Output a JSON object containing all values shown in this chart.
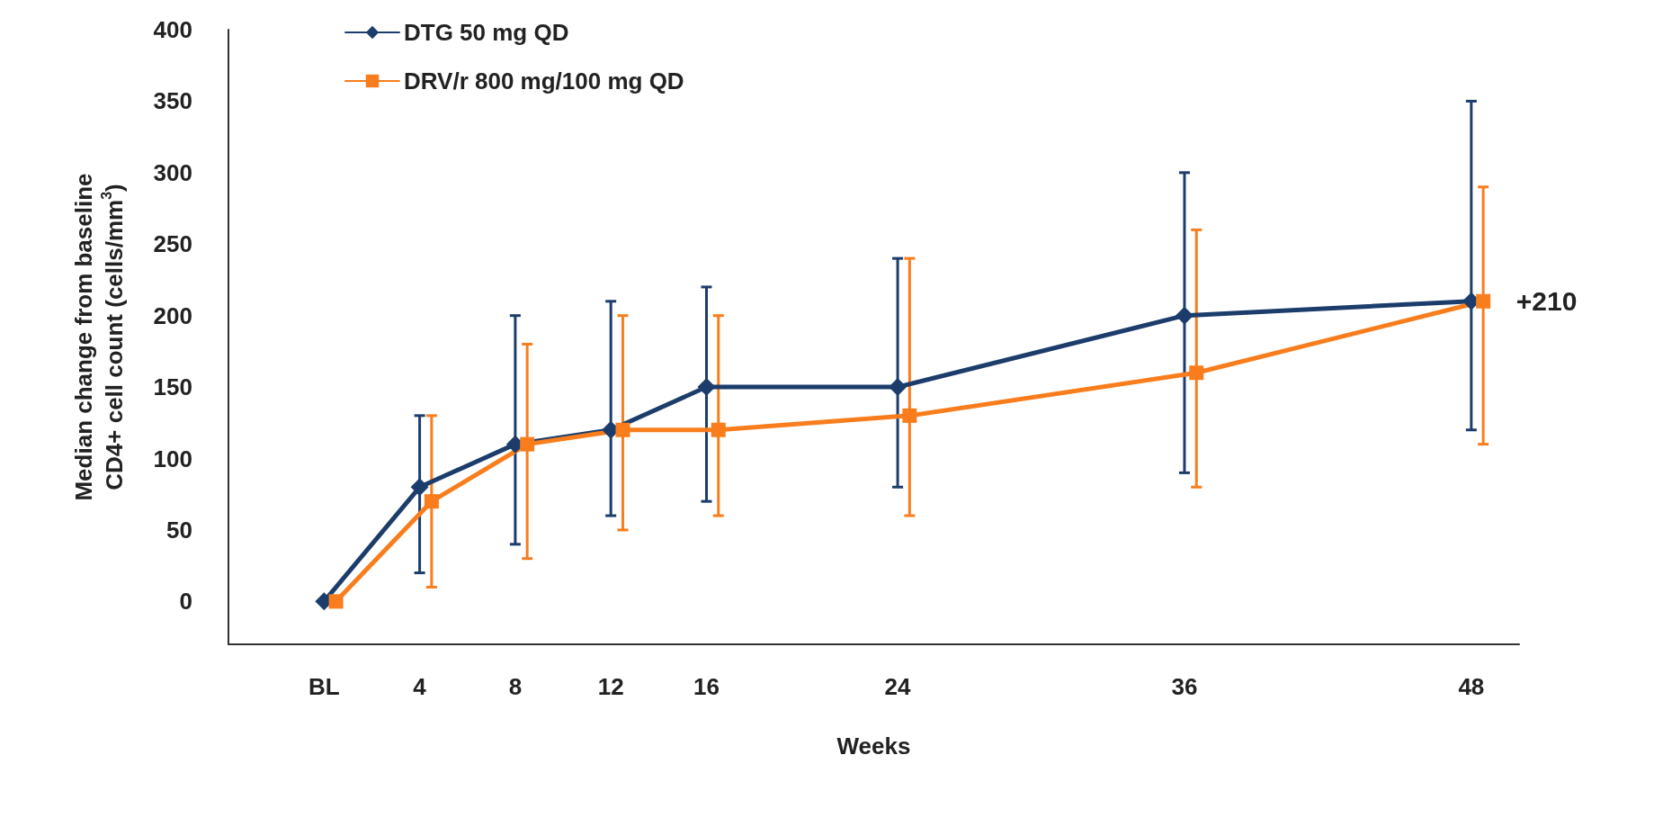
{
  "chart_data": {
    "type": "line",
    "xlabel": "Weeks",
    "ylabel": "Median change from baseline\nCD4+ cell count (cells/mm$^{3}$)",
    "xlim": [
      -4,
      50
    ],
    "xticks": [
      {
        "value": 0,
        "label": "BL"
      },
      4,
      8,
      12,
      16,
      24,
      36,
      48
    ],
    "ylim": [
      -30,
      400
    ],
    "yticks": [
      0,
      50,
      100,
      150,
      200,
      250,
      300,
      350,
      400
    ],
    "grid": false,
    "legend": "top left",
    "line_style": "solid",
    "annotations": [
      {
        "text": "+210",
        "x": 48,
        "y": 210
      }
    ],
    "series": [
      {
        "name": "DTG 50 mg QD",
        "color": "#1c3d6b",
        "marker": "diamond",
        "x": [
          0,
          4,
          8,
          12,
          16,
          24,
          36,
          48
        ],
        "values": [
          0,
          80,
          110,
          120,
          150,
          150,
          200,
          210
        ],
        "errors": [
          null,
          [
            20,
            130
          ],
          [
            40,
            200
          ],
          [
            60,
            210
          ],
          [
            70,
            220
          ],
          [
            80,
            240
          ],
          [
            90,
            300
          ],
          [
            120,
            350
          ]
        ]
      },
      {
        "name": "DRV/r 800 mg/100 mg QD",
        "color": "#f97d1c",
        "marker": "square",
        "x": [
          0.5,
          4.5,
          8.5,
          12.5,
          16.5,
          24.5,
          36.5,
          48.5
        ],
        "values": [
          0,
          70,
          110,
          120,
          120,
          130,
          160,
          210
        ],
        "errors": [
          null,
          [
            10,
            130
          ],
          [
            30,
            180
          ],
          [
            50,
            200
          ],
          [
            60,
            200
          ],
          [
            60,
            240
          ],
          [
            80,
            260
          ],
          [
            110,
            290
          ]
        ]
      }
    ]
  }
}
